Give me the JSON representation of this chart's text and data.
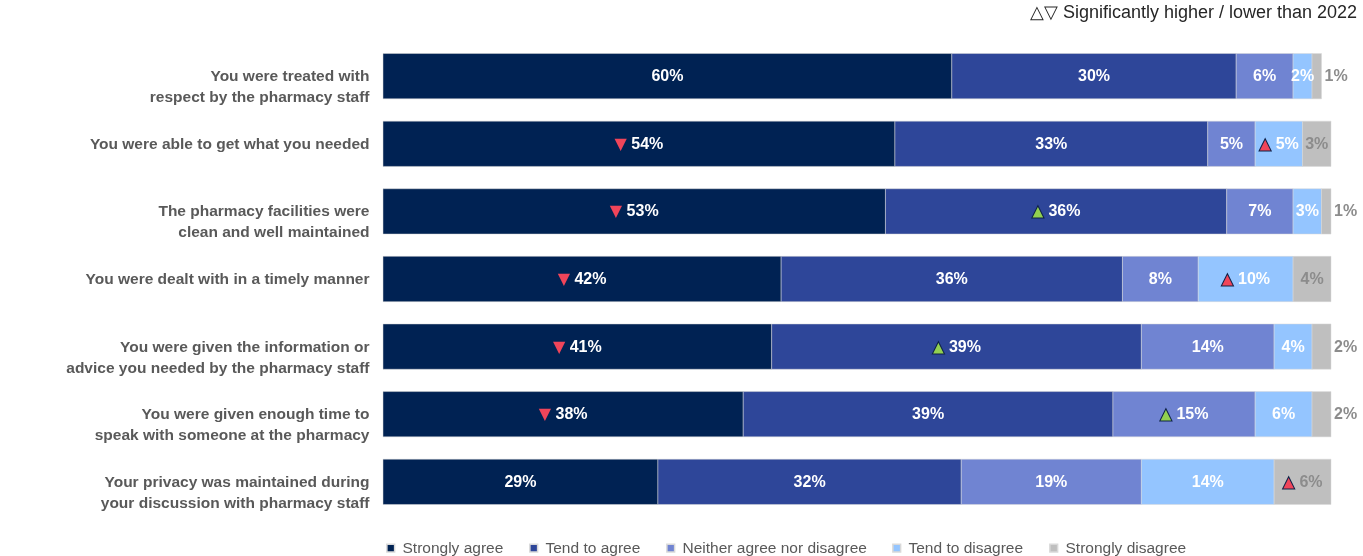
{
  "chart_data": {
    "type": "bar",
    "orientation": "horizontal",
    "stacked": true,
    "legend": "bottom",
    "annotations": [
      "△▽ Significantly higher / lower than 2022"
    ],
    "categories": [
      "You were treated with respect by the pharmacy staff",
      "You were able to get what you needed",
      "The pharmacy facilities were clean and well maintained",
      "You were dealt with in a timely manner",
      "You were given the information or advice you needed by the pharmacy staff",
      "You were given enough time to speak with someone at the pharmacy",
      "Your privacy was maintained during your discussion with pharmacy staff"
    ],
    "series": [
      {
        "name": "Strongly agree",
        "color": "#002253",
        "values": [
          60,
          54,
          53,
          42,
          41,
          38,
          29
        ],
        "value_labels": [
          "60%",
          "▼ 54%",
          "▼ 53%",
          "▼ 42%",
          "▼ 41%",
          "▼ 38%",
          "29%"
        ]
      },
      {
        "name": "Tend to agree",
        "color": "#2e4699",
        "values": [
          30,
          33,
          36,
          36,
          39,
          39,
          32
        ],
        "value_labels": [
          "30%",
          "33%",
          "▲ 36%",
          "36%",
          "▲ 39%",
          "39%",
          "32%"
        ]
      },
      {
        "name": "Neither agree nor disagree",
        "color": "#7084d2",
        "values": [
          6,
          5,
          7,
          8,
          14,
          15,
          19
        ],
        "value_labels": [
          "6%",
          "5%",
          "7%",
          "8%",
          "14%",
          "▲ 15%",
          "19%"
        ]
      },
      {
        "name": "Tend to disagree",
        "color": "#94c5ff",
        "values": [
          2,
          5,
          3,
          10,
          4,
          6,
          14
        ],
        "value_labels": [
          "2%",
          "▲ 5%",
          "3%",
          "▲ 10%",
          "4%",
          "6%",
          "14%"
        ]
      },
      {
        "name": "Strongly disagree",
        "color": "#bfbfbf",
        "values": [
          1,
          3,
          1,
          4,
          2,
          2,
          6
        ],
        "value_labels": [
          "1%",
          "3%",
          "1%",
          "4%",
          "2%",
          "2%",
          "▲ 6%"
        ]
      }
    ]
  }
}
